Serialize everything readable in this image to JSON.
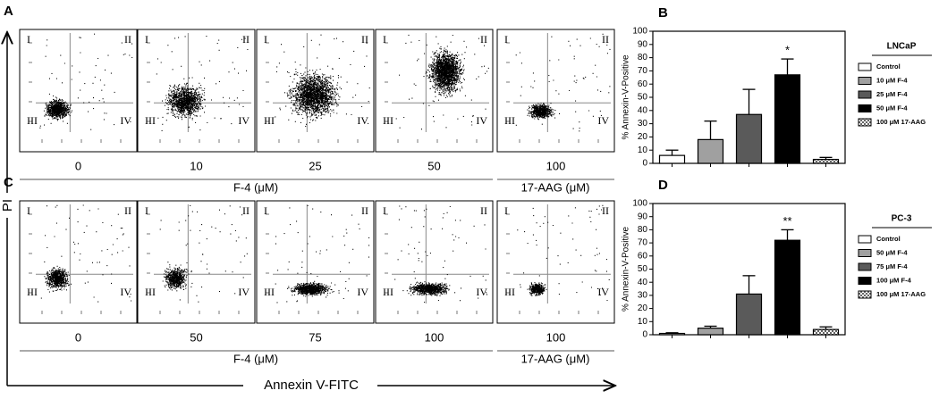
{
  "flow": {
    "quadrants": [
      "I",
      "II",
      "III",
      "IV"
    ],
    "y_axis_label": "PI",
    "x_axis_label": "Annexin V-FITC",
    "rows": [
      {
        "letter": "A",
        "doses": [
          "0",
          "10",
          "25",
          "50",
          "100"
        ],
        "agent": "F-4 (μM)",
        "reference": "17-AAG (μM)"
      },
      {
        "letter": "C",
        "doses": [
          "0",
          "50",
          "75",
          "100",
          "100"
        ],
        "agent": "F-4 (μM)",
        "reference": "17-AAG (μM)"
      }
    ]
  },
  "chart_data": [
    {
      "type": "bar",
      "letter": "B",
      "legend_title": "LNCaP",
      "y_label": "% Annexin-V-Positive",
      "categories": [
        "Control",
        "10 μM F-4",
        "25 μM F-4",
        "50 μM F-4",
        "100 μM 17-AAG"
      ],
      "values": [
        6,
        18,
        37,
        67,
        3
      ],
      "errors": [
        4,
        14,
        19,
        12,
        1.5
      ],
      "significance": [
        null,
        null,
        null,
        "*",
        null
      ],
      "colors": [
        "#ffffff",
        "#a0a0a0",
        "#5a5a5a",
        "#000000",
        "url(#checker)"
      ],
      "ylim": [
        0,
        100
      ],
      "yticks": [
        0,
        10,
        20,
        30,
        40,
        50,
        60,
        70,
        80,
        90,
        100
      ]
    },
    {
      "type": "bar",
      "letter": "D",
      "legend_title": "PC-3",
      "y_label": "% Annexin-V-Positive",
      "categories": [
        "Control",
        "50 μM F-4",
        "75 μM F-4",
        "100 μM F-4",
        "100 μM 17-AAG"
      ],
      "values": [
        1,
        5,
        31,
        72,
        4
      ],
      "errors": [
        0.5,
        1.5,
        14,
        8,
        2
      ],
      "significance": [
        null,
        null,
        null,
        "**",
        null
      ],
      "colors": [
        "#ffffff",
        "#a0a0a0",
        "#5a5a5a",
        "#000000",
        "url(#checker)"
      ],
      "ylim": [
        0,
        100
      ],
      "yticks": [
        0,
        10,
        20,
        30,
        40,
        50,
        60,
        70,
        80,
        90,
        100
      ]
    }
  ]
}
